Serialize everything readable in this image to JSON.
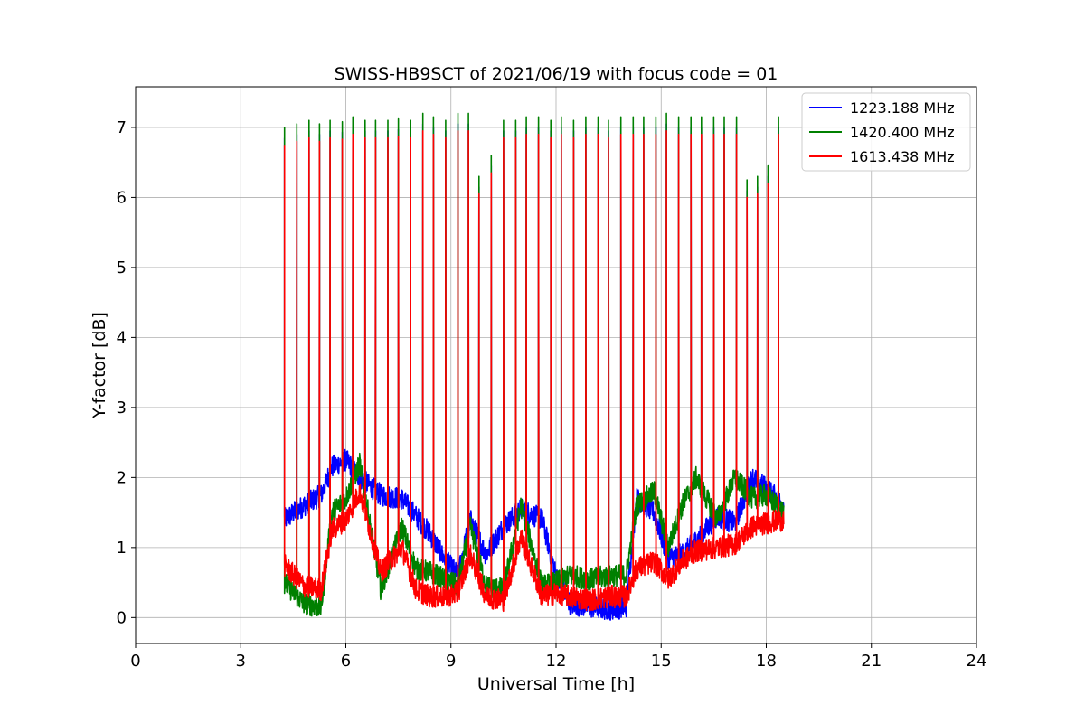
{
  "chart_data": {
    "type": "line",
    "title": "SWISS-HB9SCT of 2021/06/19 with focus code = 01",
    "xlabel": "Universal Time [h]",
    "ylabel": "Y-factor [dB]",
    "xlim": [
      0,
      24
    ],
    "ylim": [
      -0.37,
      7.58
    ],
    "xticks": [
      0,
      3,
      6,
      9,
      12,
      15,
      18,
      21,
      24
    ],
    "yticks": [
      0,
      1,
      2,
      3,
      4,
      5,
      6,
      7
    ],
    "grid": true,
    "legend_position": "top-right",
    "series": [
      {
        "name": "1223.188 MHz",
        "color": "#0000ff",
        "baseline": [
          [
            4.25,
            1.4
          ],
          [
            4.8,
            1.6
          ],
          [
            5.3,
            1.75
          ],
          [
            5.6,
            2.15
          ],
          [
            6.0,
            2.25
          ],
          [
            6.4,
            2.0
          ],
          [
            7.0,
            1.75
          ],
          [
            7.6,
            1.7
          ],
          [
            8.0,
            1.45
          ],
          [
            8.4,
            1.2
          ],
          [
            8.8,
            0.85
          ],
          [
            9.2,
            0.6
          ],
          [
            9.55,
            1.4
          ],
          [
            10.0,
            0.9
          ],
          [
            10.5,
            1.3
          ],
          [
            11.0,
            1.55
          ],
          [
            11.6,
            1.4
          ],
          [
            12.0,
            0.6
          ],
          [
            12.4,
            0.2
          ],
          [
            13.0,
            0.15
          ],
          [
            13.5,
            0.12
          ],
          [
            14.0,
            0.15
          ],
          [
            14.3,
            1.7
          ],
          [
            14.8,
            1.5
          ],
          [
            15.2,
            0.85
          ],
          [
            15.6,
            0.9
          ],
          [
            16.0,
            1.1
          ],
          [
            16.6,
            1.45
          ],
          [
            17.1,
            1.35
          ],
          [
            17.6,
            2.0
          ],
          [
            18.0,
            1.85
          ],
          [
            18.5,
            1.6
          ]
        ]
      },
      {
        "name": "1420.400 MHz",
        "color": "#008000",
        "baseline": [
          [
            4.25,
            0.5
          ],
          [
            4.8,
            0.2
          ],
          [
            5.3,
            0.15
          ],
          [
            5.6,
            1.5
          ],
          [
            6.0,
            1.7
          ],
          [
            6.4,
            2.2
          ],
          [
            7.0,
            0.4
          ],
          [
            7.6,
            1.3
          ],
          [
            8.0,
            0.7
          ],
          [
            8.4,
            0.65
          ],
          [
            8.8,
            0.55
          ],
          [
            9.2,
            0.45
          ],
          [
            9.55,
            1.3
          ],
          [
            10.0,
            0.45
          ],
          [
            10.5,
            0.4
          ],
          [
            11.0,
            1.6
          ],
          [
            11.6,
            0.45
          ],
          [
            12.0,
            0.5
          ],
          [
            12.4,
            0.6
          ],
          [
            13.0,
            0.55
          ],
          [
            13.5,
            0.6
          ],
          [
            14.0,
            0.6
          ],
          [
            14.3,
            1.6
          ],
          [
            14.8,
            1.8
          ],
          [
            15.2,
            1.0
          ],
          [
            15.6,
            1.6
          ],
          [
            16.0,
            2.0
          ],
          [
            16.6,
            1.4
          ],
          [
            17.1,
            2.0
          ],
          [
            17.6,
            1.7
          ],
          [
            18.0,
            1.75
          ],
          [
            18.5,
            1.5
          ]
        ]
      },
      {
        "name": "1613.438 MHz",
        "color": "#ff0000",
        "baseline": [
          [
            4.25,
            0.75
          ],
          [
            4.8,
            0.45
          ],
          [
            5.3,
            0.4
          ],
          [
            5.6,
            1.25
          ],
          [
            6.0,
            1.4
          ],
          [
            6.4,
            1.8
          ],
          [
            7.0,
            0.65
          ],
          [
            7.6,
            1.0
          ],
          [
            8.0,
            0.4
          ],
          [
            8.4,
            0.3
          ],
          [
            8.8,
            0.3
          ],
          [
            9.2,
            0.35
          ],
          [
            9.55,
            0.9
          ],
          [
            10.0,
            0.3
          ],
          [
            10.5,
            0.25
          ],
          [
            11.0,
            1.15
          ],
          [
            11.6,
            0.3
          ],
          [
            12.0,
            0.35
          ],
          [
            12.4,
            0.3
          ],
          [
            13.0,
            0.25
          ],
          [
            13.5,
            0.3
          ],
          [
            14.0,
            0.3
          ],
          [
            14.3,
            0.7
          ],
          [
            14.8,
            0.8
          ],
          [
            15.2,
            0.55
          ],
          [
            15.6,
            0.8
          ],
          [
            16.0,
            0.95
          ],
          [
            16.6,
            1.0
          ],
          [
            17.1,
            1.05
          ],
          [
            17.6,
            1.3
          ],
          [
            18.0,
            1.35
          ],
          [
            18.5,
            1.4
          ]
        ]
      }
    ],
    "spikes": [
      {
        "x": 4.25,
        "peak": 7.0
      },
      {
        "x": 4.6,
        "peak": 7.05
      },
      {
        "x": 4.95,
        "peak": 7.1
      },
      {
        "x": 5.25,
        "peak": 7.05
      },
      {
        "x": 5.55,
        "peak": 7.1
      },
      {
        "x": 5.9,
        "peak": 7.08
      },
      {
        "x": 6.2,
        "peak": 7.15
      },
      {
        "x": 6.55,
        "peak": 7.1
      },
      {
        "x": 6.85,
        "peak": 7.1
      },
      {
        "x": 7.2,
        "peak": 7.1
      },
      {
        "x": 7.5,
        "peak": 7.12
      },
      {
        "x": 7.85,
        "peak": 7.1
      },
      {
        "x": 8.2,
        "peak": 7.2
      },
      {
        "x": 8.5,
        "peak": 7.15
      },
      {
        "x": 8.85,
        "peak": 7.1
      },
      {
        "x": 9.2,
        "peak": 7.2
      },
      {
        "x": 9.5,
        "peak": 7.2
      },
      {
        "x": 9.8,
        "peak": 6.3
      },
      {
        "x": 10.15,
        "peak": 6.6
      },
      {
        "x": 10.5,
        "peak": 7.1
      },
      {
        "x": 10.85,
        "peak": 7.1
      },
      {
        "x": 11.15,
        "peak": 7.15
      },
      {
        "x": 11.5,
        "peak": 7.15
      },
      {
        "x": 11.85,
        "peak": 7.1
      },
      {
        "x": 12.15,
        "peak": 7.15
      },
      {
        "x": 12.5,
        "peak": 7.1
      },
      {
        "x": 12.85,
        "peak": 7.15
      },
      {
        "x": 13.2,
        "peak": 7.15
      },
      {
        "x": 13.5,
        "peak": 7.1
      },
      {
        "x": 13.85,
        "peak": 7.15
      },
      {
        "x": 14.2,
        "peak": 7.15
      },
      {
        "x": 14.5,
        "peak": 7.15
      },
      {
        "x": 14.85,
        "peak": 7.15
      },
      {
        "x": 15.15,
        "peak": 7.2
      },
      {
        "x": 15.5,
        "peak": 7.15
      },
      {
        "x": 15.85,
        "peak": 7.15
      },
      {
        "x": 16.15,
        "peak": 7.15
      },
      {
        "x": 16.5,
        "peak": 7.15
      },
      {
        "x": 16.8,
        "peak": 7.15
      },
      {
        "x": 17.15,
        "peak": 7.15
      },
      {
        "x": 17.45,
        "peak": 6.25
      },
      {
        "x": 17.75,
        "peak": 6.3
      },
      {
        "x": 18.05,
        "peak": 6.45
      },
      {
        "x": 18.35,
        "peak": 7.15
      }
    ]
  }
}
